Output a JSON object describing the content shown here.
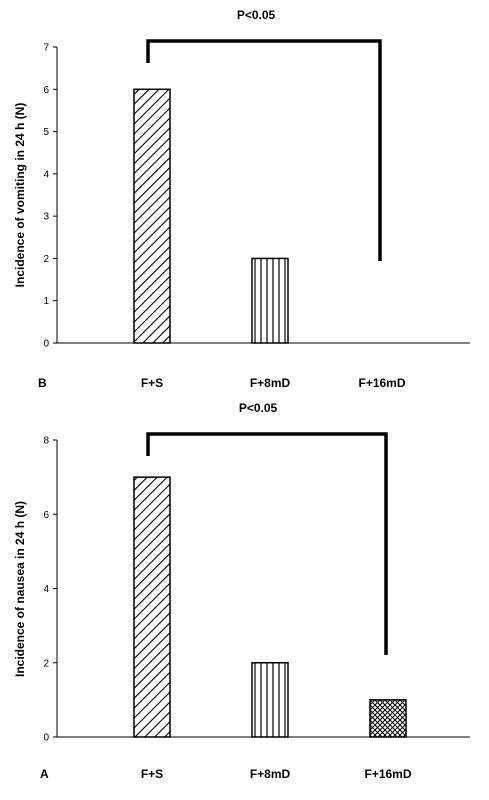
{
  "chart_data": [
    {
      "type": "bar",
      "panel_label": "B",
      "categories": [
        "F+S",
        "F+8mD",
        "F+16mD"
      ],
      "values": [
        6,
        2,
        0
      ],
      "ylabel": "Incidence of vomiting in 24 h (N)",
      "ylim": [
        0,
        7
      ],
      "yticks": [
        "0",
        "1",
        "2",
        "3",
        "4",
        "5",
        "6",
        "7"
      ],
      "bar_patterns": [
        "diagonal-hatch",
        "vertical-hatch",
        "crosshatch"
      ],
      "significance": {
        "label": "P<0.05",
        "from_category": "F+S",
        "to_category": "F+16mD"
      },
      "grid": false,
      "legend": "none"
    },
    {
      "type": "bar",
      "panel_label": "A",
      "categories": [
        "F+S",
        "F+8mD",
        "F+16mD"
      ],
      "values": [
        7,
        2,
        1
      ],
      "ylabel": "Incidence of nausea in 24 h (N)",
      "ylim": [
        0,
        8
      ],
      "yticks": [
        "0",
        "2",
        "4",
        "6",
        "8"
      ],
      "bar_patterns": [
        "diagonal-hatch",
        "vertical-hatch",
        "crosshatch"
      ],
      "significance": {
        "label": "P<0.05",
        "from_category": "F+S",
        "to_category": "F+16mD"
      },
      "grid": false,
      "legend": "none"
    }
  ]
}
